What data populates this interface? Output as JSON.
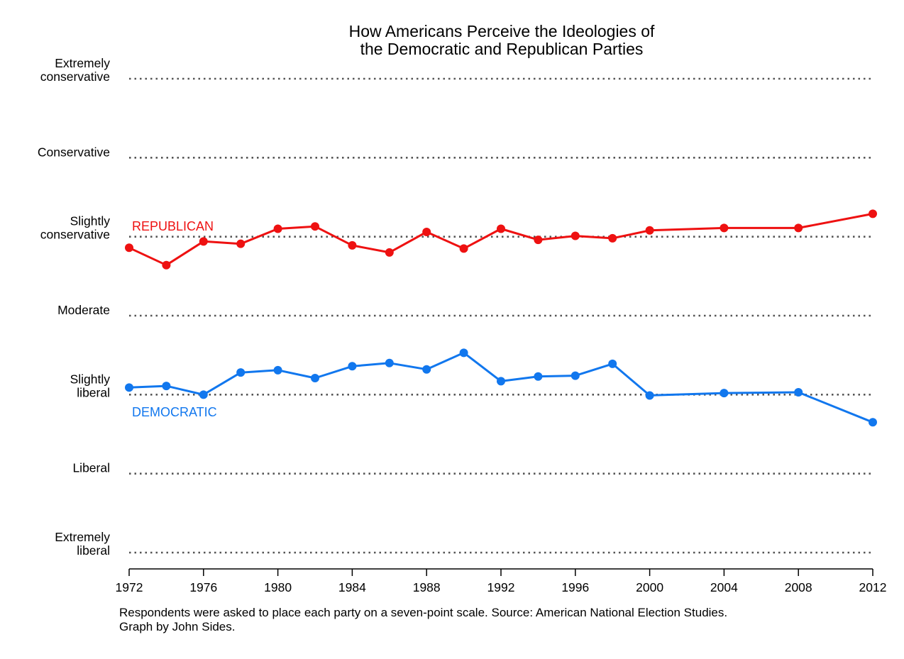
{
  "chart_data": {
    "type": "line",
    "title_lines": [
      "How Americans Perceive the Ideologies of",
      "the Democratic and Republican Parties"
    ],
    "y_scale": [
      {
        "value": 7,
        "lines": [
          "Extremely",
          "conservative"
        ]
      },
      {
        "value": 6,
        "lines": [
          "Conservative"
        ]
      },
      {
        "value": 5,
        "lines": [
          "Slightly",
          "conservative"
        ]
      },
      {
        "value": 4,
        "lines": [
          "Moderate"
        ]
      },
      {
        "value": 3,
        "lines": [
          "Slightly",
          "liberal"
        ]
      },
      {
        "value": 2,
        "lines": [
          "Liberal"
        ]
      },
      {
        "value": 1,
        "lines": [
          "Extremely",
          "liberal"
        ]
      }
    ],
    "ylim": [
      1,
      7
    ],
    "xlim": [
      1972,
      2012
    ],
    "x_ticks": [
      1972,
      1976,
      1980,
      1984,
      1988,
      1992,
      1996,
      2000,
      2004,
      2008,
      2012
    ],
    "grid": "dotted horizontal at each scale point",
    "series": [
      {
        "name": "REPUBLICAN",
        "color": "#ee1111",
        "points": [
          [
            1972,
            4.86
          ],
          [
            1974,
            4.64
          ],
          [
            1976,
            4.94
          ],
          [
            1978,
            4.91
          ],
          [
            1980,
            5.1
          ],
          [
            1982,
            5.13
          ],
          [
            1984,
            4.89
          ],
          [
            1986,
            4.8
          ],
          [
            1988,
            5.06
          ],
          [
            1990,
            4.85
          ],
          [
            1992,
            5.1
          ],
          [
            1994,
            4.96
          ],
          [
            1996,
            5.01
          ],
          [
            1998,
            4.98
          ],
          [
            2000,
            5.08
          ],
          [
            2004,
            5.11
          ],
          [
            2008,
            5.11
          ],
          [
            2012,
            5.29
          ]
        ]
      },
      {
        "name": "DEMOCRATIC",
        "color": "#1177ee",
        "points": [
          [
            1972,
            3.09
          ],
          [
            1974,
            3.11
          ],
          [
            1976,
            3.0
          ],
          [
            1978,
            3.28
          ],
          [
            1980,
            3.31
          ],
          [
            1982,
            3.21
          ],
          [
            1984,
            3.36
          ],
          [
            1986,
            3.4
          ],
          [
            1988,
            3.32
          ],
          [
            1990,
            3.53
          ],
          [
            1992,
            3.17
          ],
          [
            1994,
            3.23
          ],
          [
            1996,
            3.24
          ],
          [
            1998,
            3.39
          ],
          [
            2000,
            2.99
          ],
          [
            2004,
            3.02
          ],
          [
            2008,
            3.03
          ],
          [
            2012,
            2.65
          ]
        ]
      }
    ],
    "caption_lines": [
      "Respondents were asked to place each party on a seven-point scale. Source: American National Election Studies.",
      "Graph by John Sides."
    ]
  }
}
